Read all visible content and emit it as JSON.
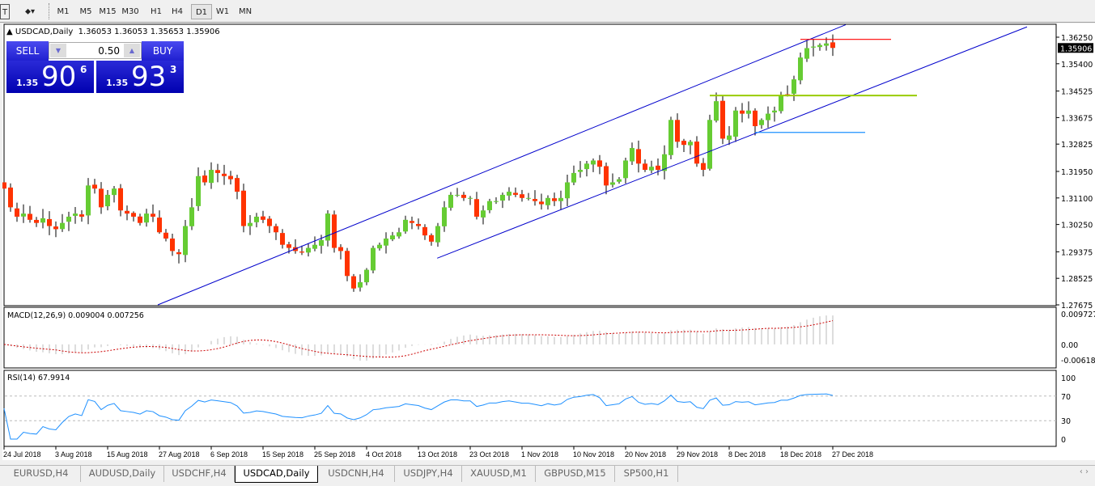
{
  "toolbar": {
    "timeframes": [
      "M1",
      "M5",
      "M15",
      "M30",
      "H1",
      "H4",
      "D1",
      "W1",
      "MN"
    ],
    "selected": "D1"
  },
  "chart": {
    "title": "USDCAD,Daily",
    "ohlc": "1.36053 1.36053 1.35653 1.35906",
    "current_price": "1.35906"
  },
  "trade_panel": {
    "sell_label": "SELL",
    "buy_label": "BUY",
    "lot": "0.50",
    "sell_small": "1.35",
    "sell_big": "90",
    "sell_pip": "6",
    "buy_small": "1.35",
    "buy_big": "93",
    "buy_pip": "3"
  },
  "macd": {
    "label": "MACD(12,26,9) 0.009004 0.007256",
    "axis": [
      "0.009727",
      "0.00",
      "-0.006182"
    ]
  },
  "rsi": {
    "label": "RSI(14) 67.9914",
    "axis": [
      "100",
      "70",
      "30",
      "0"
    ]
  },
  "tabs": [
    "EURUSD,H4",
    "AUDUSD,Daily",
    "USDCHF,H4",
    "USDCAD,Daily",
    "USDCNH,H4",
    "USDJPY,H4",
    "XAUUSD,M1",
    "GBPUSD,M15",
    "SP500,H1"
  ],
  "active_tab": "USDCAD,Daily",
  "colors": {
    "bull": "#66cc33",
    "bear": "#ff3300",
    "channel": "#0000cc",
    "red_line": "#ff0000",
    "green_line": "#99cc00",
    "blue_line": "#1e90ff",
    "rsi": "#1e90ff",
    "macd_signal": "#cc0000"
  },
  "chart_data": {
    "type": "candlestick",
    "price_ticks": [
      "1.36250",
      "1.35400",
      "1.34525",
      "1.33675",
      "1.32825",
      "1.31950",
      "1.31100",
      "1.30250",
      "1.29375",
      "1.28525",
      "1.27675"
    ],
    "ylim": [
      1.27675,
      1.3625
    ],
    "date_labels": [
      {
        "bar": 0,
        "text": "24 Jul 2018"
      },
      {
        "bar": 8,
        "text": "3 Aug 2018"
      },
      {
        "bar": 16,
        "text": "15 Aug 2018"
      },
      {
        "bar": 24,
        "text": "27 Aug 2018"
      },
      {
        "bar": 32,
        "text": "6 Sep 2018"
      },
      {
        "bar": 40,
        "text": "15 Sep 2018"
      },
      {
        "bar": 48,
        "text": "25 Sep 2018"
      },
      {
        "bar": 56,
        "text": "4 Oct 2018"
      },
      {
        "bar": 64,
        "text": "13 Oct 2018"
      },
      {
        "bar": 72,
        "text": "23 Oct 2018"
      },
      {
        "bar": 80,
        "text": "1 Nov 2018"
      },
      {
        "bar": 88,
        "text": "10 Nov 2018"
      },
      {
        "bar": 96,
        "text": "20 Nov 2018"
      },
      {
        "bar": 104,
        "text": "29 Nov 2018"
      },
      {
        "bar": 112,
        "text": "8 Dec 2018"
      },
      {
        "bar": 120,
        "text": "18 Dec 2018"
      },
      {
        "bar": 128,
        "text": "27 Dec 2018"
      }
    ],
    "closes": [
      1.314,
      1.308,
      1.305,
      1.306,
      1.304,
      1.303,
      1.3045,
      1.302,
      1.301,
      1.303,
      1.305,
      1.306,
      1.305,
      1.315,
      1.314,
      1.308,
      1.312,
      1.314,
      1.307,
      1.306,
      1.305,
      1.303,
      1.306,
      1.305,
      1.3,
      1.298,
      1.294,
      1.293,
      1.302,
      1.308,
      1.318,
      1.316,
      1.32,
      1.319,
      1.318,
      1.317,
      1.313,
      1.302,
      1.303,
      1.305,
      1.304,
      1.302,
      1.3,
      1.296,
      1.295,
      1.294,
      1.2935,
      1.295,
      1.296,
      1.2975,
      1.306,
      1.295,
      1.294,
      1.286,
      1.282,
      1.284,
      1.288,
      1.295,
      1.296,
      1.298,
      1.299,
      1.3,
      1.304,
      1.303,
      1.302,
      1.299,
      1.297,
      1.302,
      1.308,
      1.312,
      1.312,
      1.311,
      1.311,
      1.305,
      1.307,
      1.31,
      1.31,
      1.312,
      1.313,
      1.312,
      1.311,
      1.311,
      1.31,
      1.309,
      1.311,
      1.31,
      1.311,
      1.316,
      1.319,
      1.32,
      1.322,
      1.323,
      1.321,
      1.315,
      1.316,
      1.317,
      1.323,
      1.327,
      1.322,
      1.32,
      1.321,
      1.32,
      1.325,
      1.336,
      1.329,
      1.328,
      1.329,
      1.322,
      1.32,
      1.336,
      1.342,
      1.33,
      1.331,
      1.339,
      1.338,
      1.339,
      1.334,
      1.336,
      1.338,
      1.339,
      1.344,
      1.344,
      1.349,
      1.356,
      1.359,
      1.3595,
      1.36,
      1.3605,
      1.35906
    ],
    "trendlines": [
      {
        "from": [
          23.75,
          1.27675
        ],
        "to": [
          130,
          1.3665
        ],
        "color": "#0000cc"
      },
      {
        "from": [
          66.9,
          1.2917
        ],
        "to": [
          158,
          1.3658
        ],
        "color": "#0000cc"
      }
    ],
    "hlines": [
      {
        "price": 1.3618,
        "from": 123,
        "to": 137,
        "color": "#ff0000"
      },
      {
        "price": 1.3438,
        "from": 109,
        "to": 141,
        "color": "#99cc00"
      },
      {
        "price": 1.332,
        "from": 116,
        "to": 133,
        "color": "#1e90ff"
      }
    ]
  }
}
